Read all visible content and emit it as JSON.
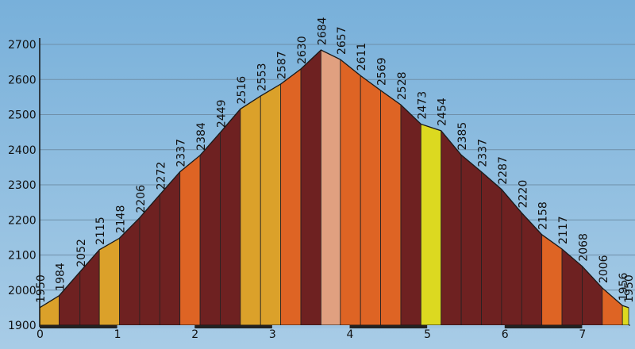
{
  "chart_data": {
    "type": "area",
    "title": "",
    "xlabel": "",
    "ylabel": "",
    "xlim": [
      0,
      7.6
    ],
    "ylim": [
      1900,
      2700
    ],
    "grid": true,
    "x_ticks": [
      0,
      1,
      2,
      3,
      4,
      5,
      6,
      7
    ],
    "y_ticks": [
      1900,
      2000,
      2100,
      2200,
      2300,
      2400,
      2500,
      2600,
      2700
    ],
    "points": [
      {
        "x": 0.0,
        "y": 1950,
        "label": "1950"
      },
      {
        "x": 0.25,
        "y": 1984,
        "label": "1984"
      },
      {
        "x": 0.52,
        "y": 2052,
        "label": "2052"
      },
      {
        "x": 0.77,
        "y": 2115,
        "label": "2115"
      },
      {
        "x": 1.03,
        "y": 2148,
        "label": "2148"
      },
      {
        "x": 1.29,
        "y": 2206,
        "label": "2206"
      },
      {
        "x": 1.55,
        "y": 2272,
        "label": "2272"
      },
      {
        "x": 1.81,
        "y": 2337,
        "label": "2337"
      },
      {
        "x": 2.07,
        "y": 2384,
        "label": "2384"
      },
      {
        "x": 2.33,
        "y": 2449,
        "label": "2449"
      },
      {
        "x": 2.59,
        "y": 2516,
        "label": "2516"
      },
      {
        "x": 2.85,
        "y": 2553,
        "label": "2553"
      },
      {
        "x": 3.11,
        "y": 2587,
        "label": "2587"
      },
      {
        "x": 3.37,
        "y": 2630,
        "label": "2630"
      },
      {
        "x": 3.63,
        "y": 2684,
        "label": "2684"
      },
      {
        "x": 3.88,
        "y": 2657,
        "label": "2657"
      },
      {
        "x": 4.14,
        "y": 2611,
        "label": "2611"
      },
      {
        "x": 4.4,
        "y": 2569,
        "label": "2569"
      },
      {
        "x": 4.66,
        "y": 2528,
        "label": "2528"
      },
      {
        "x": 4.92,
        "y": 2473,
        "label": "2473"
      },
      {
        "x": 5.18,
        "y": 2454,
        "label": "2454"
      },
      {
        "x": 5.44,
        "y": 2385,
        "label": "2385"
      },
      {
        "x": 5.7,
        "y": 2337,
        "label": "2337"
      },
      {
        "x": 5.96,
        "y": 2287,
        "label": "2287"
      },
      {
        "x": 6.22,
        "y": 2220,
        "label": "2220"
      },
      {
        "x": 6.48,
        "y": 2158,
        "label": "2158"
      },
      {
        "x": 6.74,
        "y": 2117,
        "label": "2117"
      },
      {
        "x": 7.0,
        "y": 2068,
        "label": "2068"
      },
      {
        "x": 7.26,
        "y": 2006,
        "label": "2006"
      },
      {
        "x": 7.52,
        "y": 1956,
        "label": "1956"
      },
      {
        "x": 7.6,
        "y": 1950,
        "label": "1950"
      }
    ],
    "segment_colors": [
      "#dba12a",
      "#6e2121",
      "#6e2121",
      "#dba12a",
      "#6e2121",
      "#6e2121",
      "#6e2121",
      "#de6424",
      "#6e2121",
      "#6e2121",
      "#dba12a",
      "#dba12a",
      "#de6424",
      "#6e2121",
      "#e0a080",
      "#de6424",
      "#de6424",
      "#de6424",
      "#6e2121",
      "#dcd920",
      "#6e2121",
      "#6e2121",
      "#6e2121",
      "#6e2121",
      "#6e2121",
      "#de6424",
      "#6e2121",
      "#6e2121",
      "#de6424",
      "#dcd920"
    ],
    "background_color": "#86b8dc",
    "grid_color": "#6f8fa8",
    "outline_color": "#1a1a1a",
    "scale_bar": {
      "color_dark": "#222222",
      "color_light": "#9fc4e2",
      "dark_ranges": [
        [
          0,
          1
        ],
        [
          2,
          3
        ],
        [
          4,
          5
        ],
        [
          6,
          7
        ]
      ]
    }
  }
}
